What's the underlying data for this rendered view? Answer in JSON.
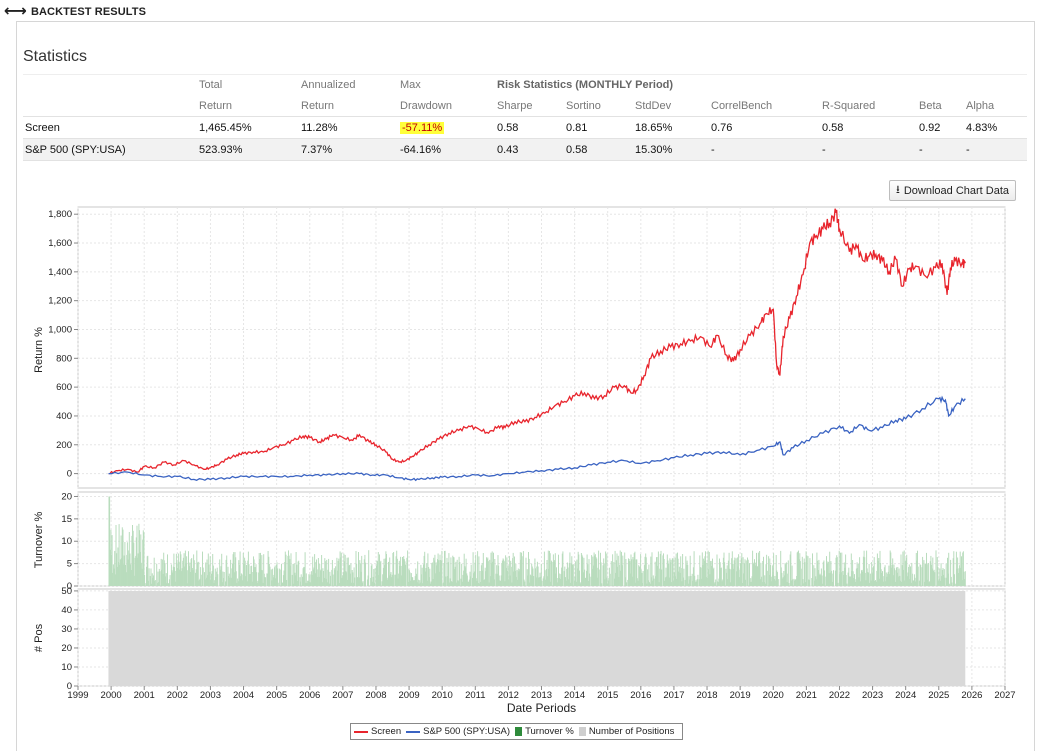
{
  "header": {
    "back_icon": "double-arrow-icon",
    "title": "BACKTEST RESULTS"
  },
  "statistics": {
    "title": "Statistics",
    "headers_line1": [
      "Total",
      "Annualized",
      "Max",
      "Risk Statistics (MONTHLY Period)"
    ],
    "headers_line2": [
      "Return",
      "Return",
      "Drawdown",
      "Sharpe",
      "Sortino",
      "StdDev",
      "CorrelBench",
      "R-Squared",
      "Beta",
      "Alpha"
    ],
    "rows": [
      {
        "name": "Screen",
        "total_return": "1,465.45%",
        "annualized_return": "11.28%",
        "max_drawdown": "-57.11%",
        "sharpe": "0.58",
        "sortino": "0.81",
        "stddev": "18.65%",
        "correlbench": "0.76",
        "r_squared": "0.58",
        "beta": "0.92",
        "alpha": "4.83%"
      },
      {
        "name": "S&P 500 (SPY:USA)",
        "total_return": "523.93%",
        "annualized_return": "7.37%",
        "max_drawdown": "-64.16%",
        "sharpe": "0.43",
        "sortino": "0.58",
        "stddev": "15.30%",
        "correlbench": "-",
        "r_squared": "-",
        "beta": "-",
        "alpha": "-"
      }
    ],
    "colors": {
      "negative": "#c00000",
      "highlight": "#ffff3a"
    }
  },
  "download_button": {
    "label": "Download Chart Data",
    "icon": "download-icon"
  },
  "chart_data": {
    "type": "line",
    "xlabel": "Date Periods",
    "x_ticks": [
      "1999",
      "2000",
      "2001",
      "2002",
      "2003",
      "2004",
      "2005",
      "2006",
      "2007",
      "2008",
      "2009",
      "2010",
      "2011",
      "2012",
      "2013",
      "2014",
      "2015",
      "2016",
      "2017",
      "2018",
      "2019",
      "2020",
      "2021",
      "2022",
      "2023",
      "2024",
      "2025",
      "2026",
      "2027"
    ],
    "panels": [
      {
        "name": "return",
        "ylabel": "Return %",
        "ylim": [
          -100,
          1850
        ],
        "y_ticks": [
          "0",
          "200",
          "400",
          "600",
          "800",
          "1,000",
          "1,200",
          "1,400",
          "1,600",
          "1,800"
        ],
        "y_tick_values": [
          0,
          200,
          400,
          600,
          800,
          1000,
          1200,
          1400,
          1600,
          1800
        ],
        "series": [
          {
            "name": "Screen",
            "color": "#e8252d",
            "x": [
              1999.92,
              2000.2,
              2000.5,
              2000.8,
              2001.0,
              2001.3,
              2001.6,
              2001.9,
              2002.2,
              2002.5,
              2002.8,
              2003.0,
              2003.2,
              2003.5,
              2003.8,
              2004.0,
              2004.3,
              2004.6,
              2004.9,
              2005.2,
              2005.5,
              2005.8,
              2006.0,
              2006.3,
              2006.5,
              2006.7,
              2007.0,
              2007.3,
              2007.5,
              2007.8,
              2008.0,
              2008.3,
              2008.5,
              2008.7,
              2008.9,
              2009.1,
              2009.3,
              2009.6,
              2009.9,
              2010.2,
              2010.5,
              2010.8,
              2011.1,
              2011.4,
              2011.7,
              2011.9,
              2012.2,
              2012.5,
              2012.8,
              2013.1,
              2013.4,
              2013.7,
              2014.0,
              2014.3,
              2014.6,
              2014.9,
              2015.2,
              2015.5,
              2015.7,
              2015.9,
              2016.1,
              2016.3,
              2016.6,
              2016.9,
              2017.2,
              2017.5,
              2017.8,
              2018.1,
              2018.3,
              2018.6,
              2018.8,
              2019.0,
              2019.3,
              2019.6,
              2019.8,
              2020.0,
              2020.1,
              2020.2,
              2020.3,
              2020.5,
              2020.7,
              2020.9,
              2021.1,
              2021.3,
              2021.5,
              2021.7,
              2021.9,
              2022.0,
              2022.3,
              2022.5,
              2022.7,
              2022.9,
              2023.1,
              2023.3,
              2023.5,
              2023.7,
              2023.9,
              2024.1,
              2024.3,
              2024.6,
              2024.9,
              2025.1,
              2025.25,
              2025.35,
              2025.5,
              2025.7,
              2025.8
            ],
            "y": [
              0,
              20,
              30,
              10,
              50,
              40,
              80,
              60,
              90,
              60,
              30,
              40,
              60,
              100,
              130,
              140,
              150,
              150,
              180,
              200,
              230,
              260,
              250,
              220,
              240,
              270,
              250,
              230,
              270,
              220,
              200,
              150,
              100,
              80,
              90,
              120,
              150,
              200,
              240,
              280,
              300,
              330,
              310,
              280,
              330,
              320,
              360,
              360,
              390,
              420,
              470,
              500,
              540,
              560,
              520,
              540,
              600,
              610,
              560,
              580,
              680,
              800,
              850,
              880,
              900,
              920,
              950,
              880,
              960,
              820,
              780,
              860,
              960,
              1040,
              1110,
              1140,
              760,
              680,
              950,
              1080,
              1230,
              1380,
              1600,
              1650,
              1700,
              1740,
              1810,
              1700,
              1540,
              1590,
              1480,
              1510,
              1520,
              1480,
              1400,
              1490,
              1300,
              1420,
              1440,
              1370,
              1430,
              1460,
              1240,
              1430,
              1480,
              1460,
              1460
            ]
          },
          {
            "name": "S&P 500 (SPY:USA)",
            "color": "#3a63c2",
            "x": [
              1999.92,
              2000.5,
              2001.0,
              2001.5,
              2002.0,
              2002.5,
              2003.0,
              2003.5,
              2004.0,
              2004.5,
              2005.0,
              2005.5,
              2006.0,
              2006.5,
              2007.0,
              2007.5,
              2007.9,
              2008.3,
              2008.7,
              2009.0,
              2009.3,
              2009.7,
              2010.0,
              2010.5,
              2011.0,
              2011.5,
              2012.0,
              2012.5,
              2013.0,
              2013.5,
              2014.0,
              2014.5,
              2015.0,
              2015.5,
              2016.0,
              2016.5,
              2017.0,
              2017.5,
              2018.0,
              2018.5,
              2019.0,
              2019.5,
              2020.0,
              2020.2,
              2020.3,
              2020.6,
              2021.0,
              2021.5,
              2022.0,
              2022.3,
              2022.6,
              2022.9,
              2023.3,
              2023.7,
              2024.0,
              2024.5,
              2025.0,
              2025.2,
              2025.3,
              2025.5,
              2025.8
            ],
            "y": [
              0,
              10,
              -10,
              -20,
              -20,
              -40,
              -40,
              -30,
              -20,
              -20,
              -20,
              -20,
              -10,
              -10,
              0,
              0,
              -10,
              -10,
              -30,
              -40,
              -40,
              -30,
              -25,
              -20,
              -10,
              -15,
              0,
              10,
              20,
              30,
              40,
              60,
              80,
              90,
              70,
              90,
              110,
              130,
              140,
              150,
              130,
              160,
              190,
              220,
              130,
              180,
              230,
              280,
              330,
              280,
              340,
              300,
              320,
              370,
              380,
              450,
              520,
              510,
              400,
              470,
              520
            ]
          }
        ]
      },
      {
        "name": "turnover",
        "ylabel": "Turnover %",
        "ylim": [
          0,
          21
        ],
        "y_ticks": [
          "0",
          "5",
          "10",
          "15",
          "20"
        ],
        "y_tick_values": [
          0,
          5,
          10,
          15,
          20
        ],
        "series": [
          {
            "name": "Turnover %",
            "color": "#2e8b3b",
            "type": "bar",
            "x_start": 1999.92,
            "x_end": 2025.8,
            "typical_range": [
              0,
              8
            ],
            "max": 20
          }
        ]
      },
      {
        "name": "positions",
        "ylabel": "# Pos",
        "ylim": [
          0,
          51
        ],
        "y_ticks": [
          "0",
          "10",
          "20",
          "30",
          "40",
          "50"
        ],
        "y_tick_values": [
          0,
          10,
          20,
          30,
          40,
          50
        ],
        "series": [
          {
            "name": "Number of Positions",
            "color": "#d9d9d9",
            "type": "area",
            "x_start": 1999.92,
            "x_end": 2025.8,
            "value": 50
          }
        ]
      }
    ],
    "legend": [
      {
        "label": "Screen",
        "color": "#e8252d",
        "kind": "line"
      },
      {
        "label": "S&P 500 (SPY:USA)",
        "color": "#3a63c2",
        "kind": "line"
      },
      {
        "label": "Turnover %",
        "color": "#2e8b3b",
        "kind": "box"
      },
      {
        "label": "Number of Positions",
        "color": "#cfcfcf",
        "kind": "box"
      }
    ],
    "grid": true,
    "legend_placement": "bottom-center"
  }
}
